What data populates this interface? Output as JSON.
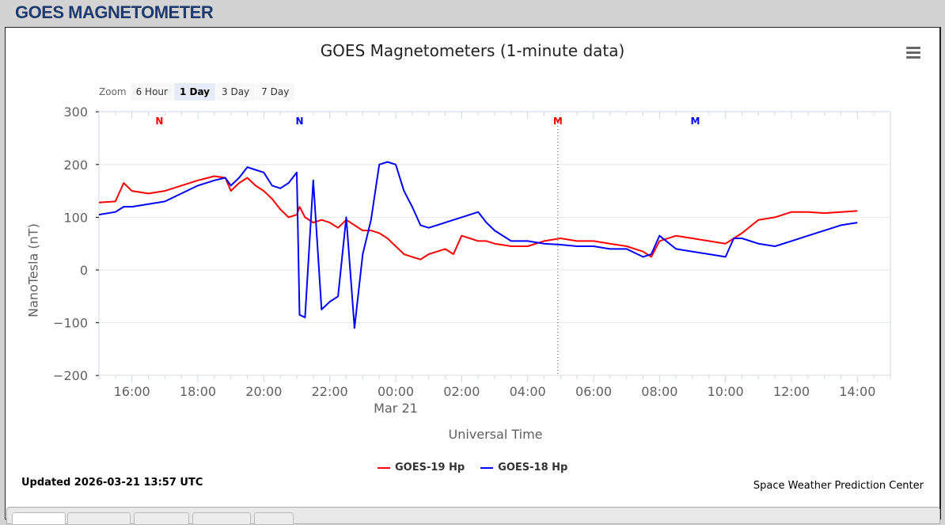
{
  "page": {
    "title": "GOES MAGNETOMETER"
  },
  "chart": {
    "title": "GOES Magnetometers (1-minute data)",
    "menu_icon": "hamburger-menu-icon",
    "zoom": {
      "label": "Zoom",
      "options": [
        "6 Hour",
        "1 Day",
        "3 Day",
        "7 Day"
      ],
      "selected": "1 Day"
    },
    "yaxis_label": "NanoTesla (nT)",
    "xaxis_label": "Universal Time",
    "markers": [
      {
        "label": "N",
        "color": "#ff0000",
        "time": "16:50"
      },
      {
        "label": "N",
        "color": "#0000ff",
        "time": "21:05"
      },
      {
        "label": "M",
        "color": "#ff0000",
        "time": "04:55"
      },
      {
        "label": "M",
        "color": "#0000ff",
        "time": "09:05"
      }
    ],
    "legend": [
      {
        "label": "GOES-19 Hp",
        "color": "#ff0000"
      },
      {
        "label": "GOES-18 Hp",
        "color": "#0000ff"
      }
    ]
  },
  "footer": {
    "updated": "Updated 2026-03-21 13:57 UTC",
    "credit": "Space Weather Prediction Center"
  },
  "chart_data": {
    "type": "line",
    "title": "GOES Magnetometers (1-minute data)",
    "xlabel": "Universal Time",
    "ylabel": "NanoTesla (nT)",
    "ylim": [
      -200,
      300
    ],
    "yticks": [
      "300",
      "200",
      "100",
      "0",
      "-100",
      "-200"
    ],
    "xticks": [
      "16:00",
      "18:00",
      "20:00",
      "22:00",
      "00:00",
      "02:00",
      "04:00",
      "06:00",
      "08:00",
      "10:00",
      "12:00",
      "14:00"
    ],
    "xtick_sublabel": {
      "00:00": "Mar 21"
    },
    "grid": true,
    "legend_position": "bottom",
    "x": [
      "15:00",
      "15:30",
      "15:45",
      "16:00",
      "16:30",
      "17:00",
      "17:30",
      "18:00",
      "18:30",
      "18:50",
      "19:00",
      "19:15",
      "19:30",
      "19:45",
      "20:00",
      "20:15",
      "20:30",
      "20:45",
      "21:00",
      "21:05",
      "21:15",
      "21:30",
      "21:45",
      "22:00",
      "22:15",
      "22:30",
      "22:45",
      "23:00",
      "23:15",
      "23:30",
      "23:45",
      "00:00",
      "00:15",
      "00:30",
      "00:45",
      "01:00",
      "01:15",
      "01:30",
      "01:45",
      "02:00",
      "02:15",
      "02:30",
      "02:45",
      "03:00",
      "03:30",
      "04:00",
      "04:30",
      "05:00",
      "05:30",
      "06:00",
      "06:30",
      "07:00",
      "07:30",
      "07:45",
      "08:00",
      "08:30",
      "09:00",
      "09:30",
      "10:00",
      "10:15",
      "10:30",
      "11:00",
      "11:30",
      "12:00",
      "12:30",
      "13:00",
      "13:30",
      "14:00"
    ],
    "series": [
      {
        "name": "GOES-19 Hp",
        "color": "#ff0000",
        "values": [
          128,
          130,
          165,
          150,
          145,
          150,
          160,
          170,
          178,
          175,
          150,
          165,
          175,
          160,
          150,
          135,
          115,
          100,
          105,
          120,
          100,
          90,
          95,
          90,
          80,
          95,
          85,
          75,
          75,
          70,
          60,
          45,
          30,
          25,
          20,
          30,
          35,
          40,
          30,
          65,
          60,
          55,
          55,
          50,
          45,
          45,
          55,
          60,
          55,
          55,
          50,
          45,
          35,
          25,
          55,
          65,
          60,
          55,
          50,
          60,
          70,
          95,
          100,
          110,
          110,
          108,
          110,
          112
        ]
      },
      {
        "name": "GOES-18 Hp",
        "color": "#0000ff",
        "values": [
          105,
          110,
          120,
          120,
          125,
          130,
          145,
          160,
          170,
          175,
          160,
          175,
          195,
          190,
          185,
          160,
          155,
          165,
          185,
          -85,
          -90,
          170,
          -75,
          -60,
          -50,
          100,
          -110,
          30,
          95,
          200,
          205,
          200,
          150,
          120,
          85,
          80,
          85,
          90,
          95,
          100,
          105,
          110,
          90,
          75,
          55,
          55,
          50,
          48,
          45,
          45,
          40,
          40,
          25,
          30,
          65,
          40,
          35,
          30,
          25,
          60,
          60,
          50,
          45,
          55,
          65,
          75,
          85,
          90
        ]
      }
    ]
  }
}
